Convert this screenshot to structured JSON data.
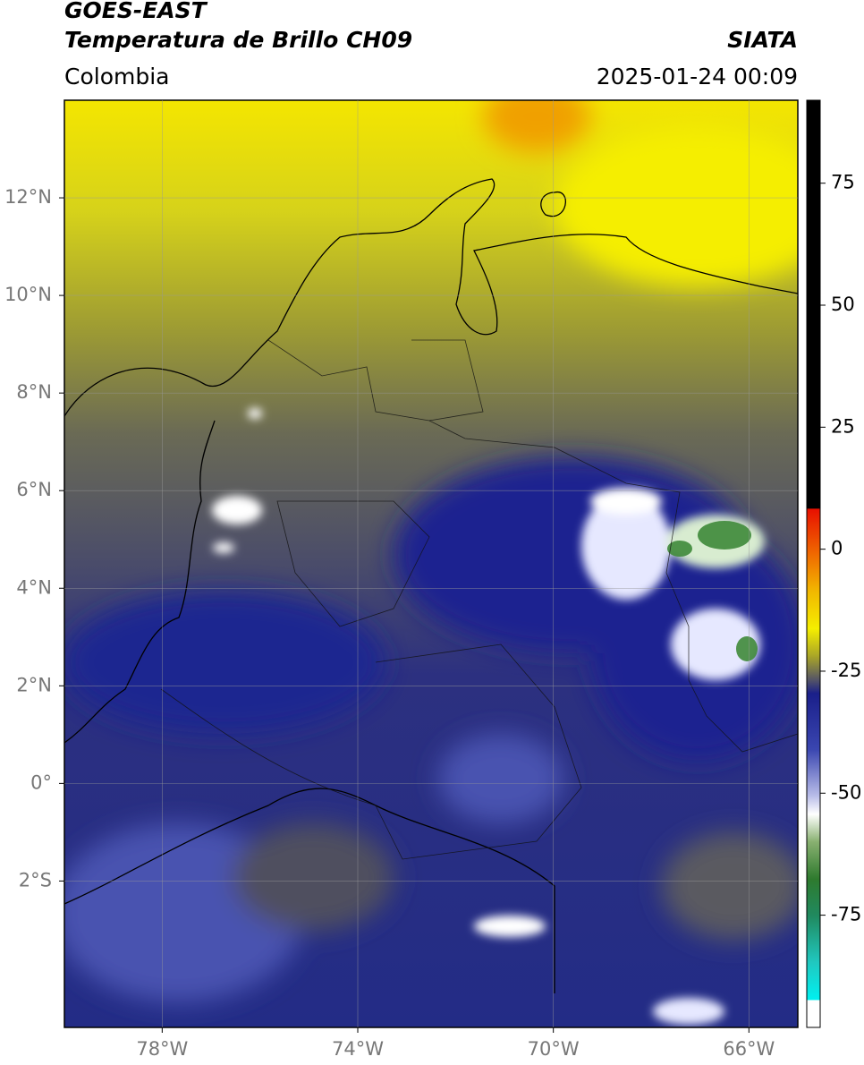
{
  "header": {
    "title": "GOES-EAST",
    "subtitle": "Temperatura de Brillo CH09",
    "region": "Colombia",
    "source": "SIATA",
    "datetime": "2025-01-24 00:09"
  },
  "map": {
    "xlim": [
      -80,
      -65
    ],
    "ylim": [
      -5,
      14
    ],
    "xticks": [
      {
        "value": -78,
        "label": "78°W"
      },
      {
        "value": -74,
        "label": "74°W"
      },
      {
        "value": -70,
        "label": "70°W"
      },
      {
        "value": -66,
        "label": "66°W"
      }
    ],
    "yticks": [
      {
        "value": 12,
        "label": "12°N"
      },
      {
        "value": 10,
        "label": "10°N"
      },
      {
        "value": 8,
        "label": "8°N"
      },
      {
        "value": 6,
        "label": "6°N"
      },
      {
        "value": 4,
        "label": "4°N"
      },
      {
        "value": 2,
        "label": "2°N"
      },
      {
        "value": 0,
        "label": "0°"
      },
      {
        "value": -2,
        "label": "2°S"
      }
    ],
    "grid": true
  },
  "colorbar": {
    "lim": [
      -98,
      92
    ],
    "ticks": [
      75,
      50,
      25,
      0,
      -25,
      -50,
      -75
    ]
  }
}
